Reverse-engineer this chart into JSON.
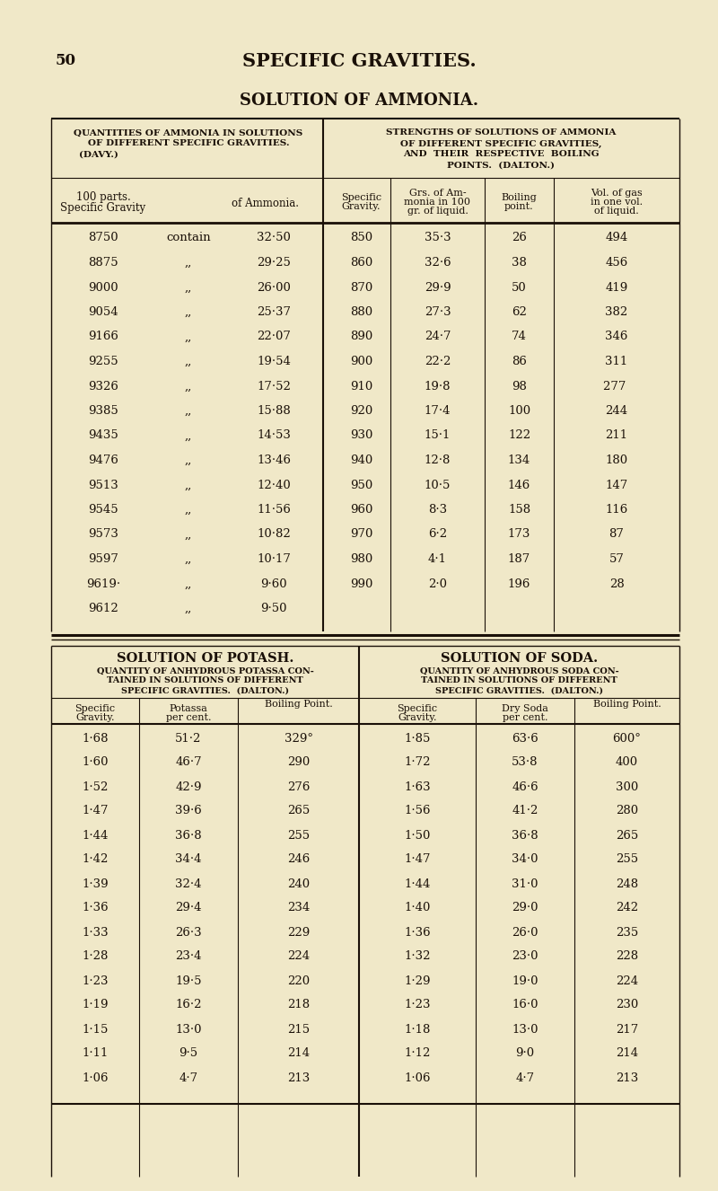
{
  "bg_color": "#f0e8c8",
  "page_number": "50",
  "page_title": "SPECIFIC GRAVITIES.",
  "section_title": "SOLUTION OF AMMONIA.",
  "ammonia_left_data": [
    [
      "8750",
      "contain",
      "32·50"
    ],
    [
      "8875",
      ",,",
      "29·25"
    ],
    [
      "9000",
      ",,",
      "26·00"
    ],
    [
      "9054",
      ",,",
      "25·37"
    ],
    [
      "9166",
      ",,",
      "22·07"
    ],
    [
      "9255",
      ",,",
      "19·54"
    ],
    [
      "9326",
      ",,",
      "17·52"
    ],
    [
      "9385",
      ",,",
      "15·88"
    ],
    [
      "9435",
      ",,",
      "14·53"
    ],
    [
      "9476",
      ",,",
      "13·46"
    ],
    [
      "9513",
      ",,",
      "12·40"
    ],
    [
      "9545",
      ",,",
      "11·56"
    ],
    [
      "9573",
      ",,",
      "10·82"
    ],
    [
      "9597",
      ",,",
      "10·17"
    ],
    [
      "9619·",
      ",,",
      "9·60"
    ],
    [
      "9612",
      ",,",
      "9·50"
    ]
  ],
  "ammonia_right_data": [
    [
      "850",
      "35·3",
      "26",
      "494"
    ],
    [
      "860",
      "32·6",
      "38",
      "456"
    ],
    [
      "870",
      "29·9",
      "50",
      "419"
    ],
    [
      "880",
      "27·3",
      "62",
      "382"
    ],
    [
      "890",
      "24·7",
      "74",
      "346"
    ],
    [
      "900",
      "22·2",
      "86",
      "311"
    ],
    [
      "910",
      "19·8",
      "98",
      "277 "
    ],
    [
      "920",
      "17·4",
      "100",
      "244"
    ],
    [
      "930",
      "15·1",
      "122",
      "211"
    ],
    [
      "940",
      "12·8",
      "134",
      "180"
    ],
    [
      "950",
      "10·5",
      "146",
      "147"
    ],
    [
      "960",
      "8·3",
      "158",
      "116"
    ],
    [
      "970",
      "6·2",
      "173",
      "87"
    ],
    [
      "980",
      "4·1",
      "187",
      "57"
    ],
    [
      "990",
      "2·0",
      "196",
      "28"
    ],
    [
      "",
      "",
      "",
      ""
    ]
  ],
  "potash_data": [
    [
      "1·68",
      "51·2",
      "329°"
    ],
    [
      "1·60",
      "46·7",
      "290"
    ],
    [
      "1·52",
      "42·9",
      "276"
    ],
    [
      "1·47",
      "39·6",
      "265"
    ],
    [
      "1·44",
      "36·8",
      "255"
    ],
    [
      "1·42",
      "34·4",
      "246"
    ],
    [
      "1·39",
      "32·4",
      "240"
    ],
    [
      "1·36",
      "29·4",
      "234"
    ],
    [
      "1·33",
      "26·3",
      "229"
    ],
    [
      "1·28",
      "23·4",
      "224"
    ],
    [
      "1·23",
      "19·5",
      "220"
    ],
    [
      "1·19",
      "16·2",
      "218"
    ],
    [
      "1·15",
      "13·0",
      "215"
    ],
    [
      "1·11",
      "9·5",
      "214"
    ],
    [
      "1·06",
      "4·7",
      "213"
    ]
  ],
  "soda_data": [
    [
      "1·85",
      "63·6",
      "600°"
    ],
    [
      "1·72",
      "53·8",
      "400"
    ],
    [
      "1·63",
      "46·6",
      "300"
    ],
    [
      "1·56",
      "41·2",
      "280"
    ],
    [
      "1·50",
      "36·8",
      "265"
    ],
    [
      "1·47",
      "34·0",
      "255"
    ],
    [
      "1·44",
      "31·0",
      "248"
    ],
    [
      "1·40",
      "29·0",
      "242"
    ],
    [
      "1·36",
      "26·0",
      "235"
    ],
    [
      "1·32",
      "23·0",
      "228"
    ],
    [
      "1·29",
      "19·0",
      "224"
    ],
    [
      "1·23",
      "16·0",
      "230"
    ],
    [
      "1·18",
      "13·0",
      "217"
    ],
    [
      "1·12",
      "9·0",
      "214"
    ],
    [
      "1·06",
      "4·7",
      "213"
    ]
  ]
}
